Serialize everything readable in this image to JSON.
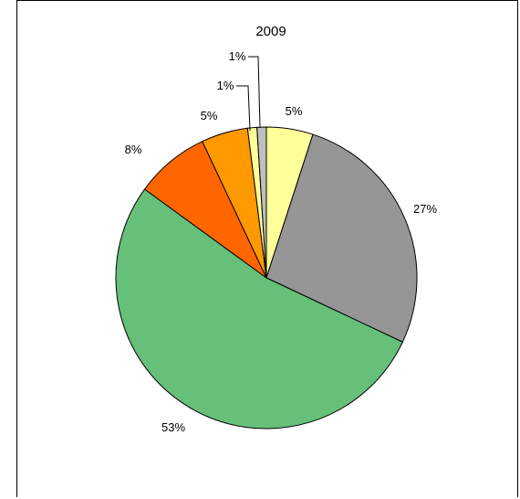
{
  "chart_data": {
    "type": "pie",
    "title": "2009",
    "slices": [
      {
        "label": "5%",
        "value": 5,
        "color": "#ffff99"
      },
      {
        "label": "27%",
        "value": 27,
        "color": "#969696"
      },
      {
        "label": "53%",
        "value": 53,
        "color": "#66c07a"
      },
      {
        "label": "8%",
        "value": 8,
        "color": "#ff6600"
      },
      {
        "label": "5%",
        "value": 5,
        "color": "#ff9900"
      },
      {
        "label": "1%",
        "value": 1,
        "color": "#ffff99"
      },
      {
        "label": "1%",
        "value": 1,
        "color": "#c0c0c0"
      }
    ]
  }
}
